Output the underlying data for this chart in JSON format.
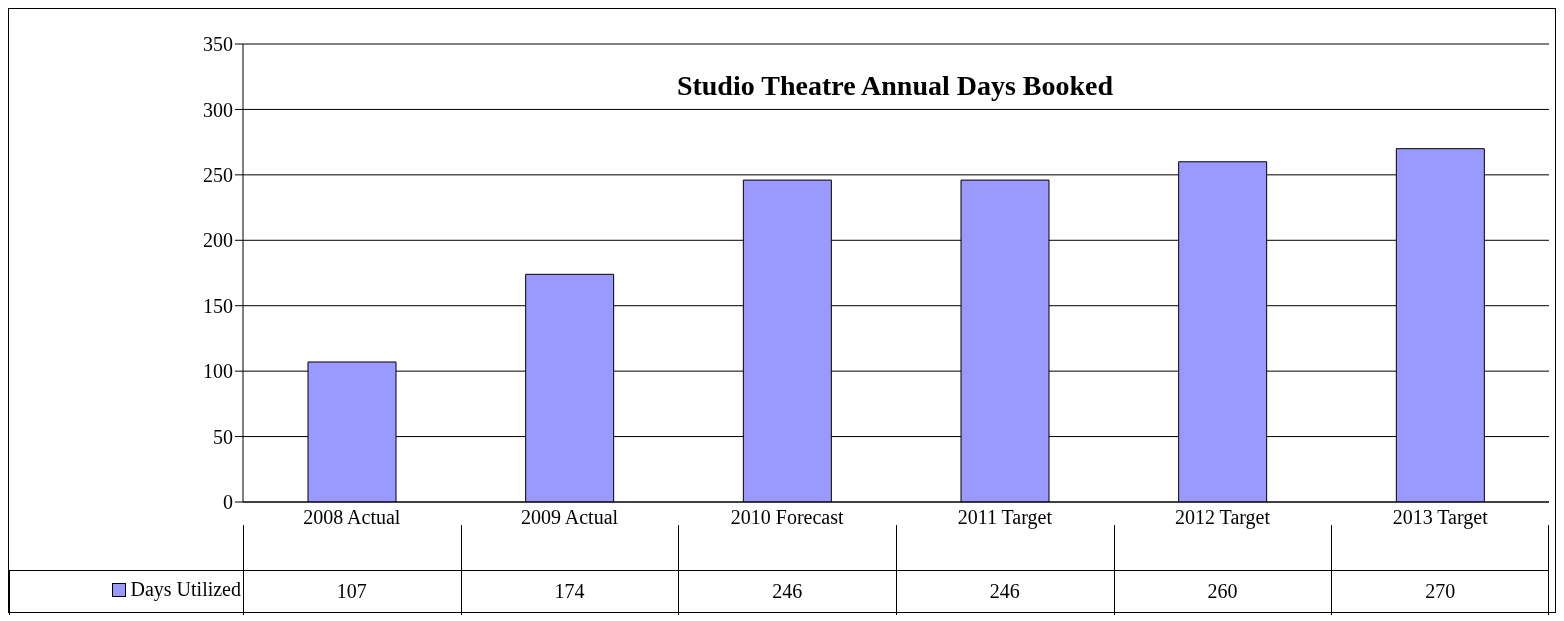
{
  "chart_data": {
    "type": "bar",
    "title": "Studio Theatre Annual Days Booked",
    "categories": [
      "2008 Actual",
      "2009 Actual",
      "2010 Forecast",
      "2011 Target",
      "2012 Target",
      "2013 Target"
    ],
    "series": [
      {
        "name": "Days Utilized",
        "color": "#9999ff",
        "values": [
          107,
          174,
          246,
          246,
          260,
          270
        ]
      }
    ],
    "ylim": [
      0,
      350
    ],
    "yticks": [
      0,
      50,
      100,
      150,
      200,
      250,
      300,
      350
    ],
    "grid": "y",
    "legend": "bottom left",
    "data_labels": true
  }
}
